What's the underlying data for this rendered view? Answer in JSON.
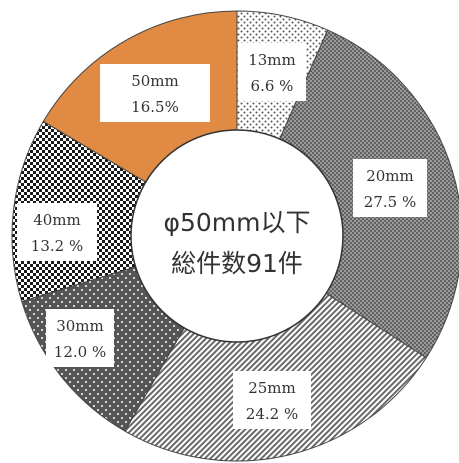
{
  "chart_data": {
    "type": "pie",
    "variant": "donut",
    "title": "",
    "center_label": [
      "φ50mm以下",
      "総件数91件"
    ],
    "legend": "none",
    "categories": [
      "13mm",
      "20mm",
      "25mm",
      "30mm",
      "40mm",
      "50mm"
    ],
    "values": [
      6.6,
      27.5,
      24.2,
      12.0,
      13.2,
      16.5
    ],
    "labels": [
      [
        "13mm",
        "6.6 %"
      ],
      [
        "20mm",
        "27.5 %"
      ],
      [
        "25mm",
        "24.2 %"
      ],
      [
        "30mm",
        "12.0 %"
      ],
      [
        "40mm",
        "13.2 %"
      ],
      [
        "50mm",
        "16.5%"
      ]
    ],
    "start_angle_deg": 0,
    "direction": "clockwise",
    "fills": [
      "dots-light",
      "dots-dense-gray",
      "diagonal-hatch",
      "dark-dots",
      "checker",
      "#e08a43"
    ]
  }
}
